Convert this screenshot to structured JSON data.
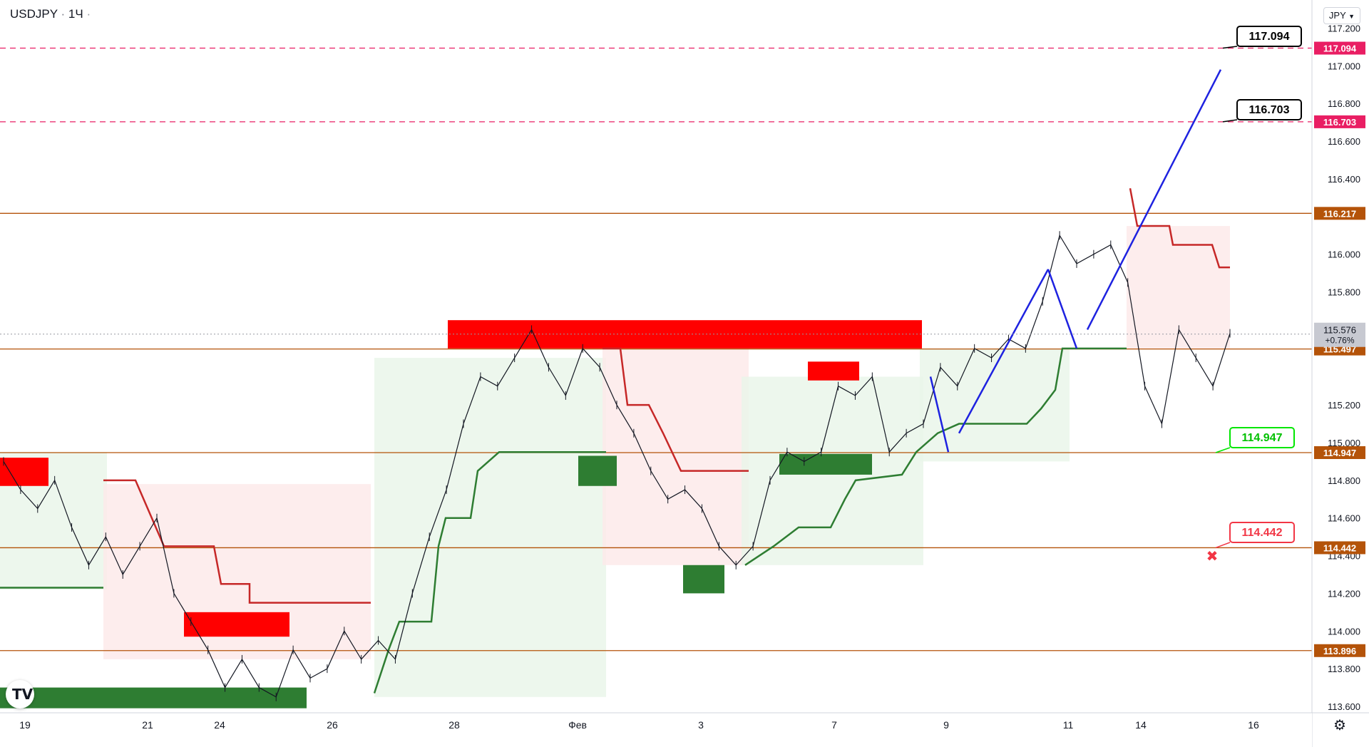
{
  "header": {
    "symbol": "USDJPY",
    "separator": "·",
    "interval": "1Ч"
  },
  "currency_button": {
    "label": "JPY",
    "icon": "chevron-down-icon"
  },
  "settings": {
    "icon": "gear-icon"
  },
  "logo": {
    "text": "TV"
  },
  "chart_data": {
    "type": "line",
    "price_axis": {
      "ticks": [
        "117.200",
        "117.000",
        "116.800",
        "116.600",
        "116.400",
        "116.000",
        "115.800",
        "115.200",
        "115.000",
        "114.800",
        "114.600",
        "114.400",
        "114.200",
        "114.000",
        "113.800",
        "113.600"
      ],
      "range": [
        113.56,
        117.28
      ]
    },
    "time_axis": {
      "ticks": [
        "19",
        "21",
        "24",
        "26",
        "28",
        "Фев",
        "3",
        "7",
        "9",
        "11",
        "14",
        "16"
      ]
    },
    "levels": [
      {
        "price": 117.094,
        "style": "dashed",
        "color": "#e91e63",
        "label": "117.094"
      },
      {
        "price": 116.703,
        "style": "dashed",
        "color": "#e91e63",
        "label": "116.703"
      },
      {
        "price": 116.217,
        "style": "solid",
        "color": "#b45309",
        "label": "116.217"
      },
      {
        "price": 115.497,
        "style": "solid",
        "color": "#b45309",
        "label": "115.497"
      },
      {
        "price": 114.947,
        "style": "solid",
        "color": "#b45309",
        "label": "114.947"
      },
      {
        "price": 114.442,
        "style": "solid",
        "color": "#b45309",
        "label": "114.442"
      },
      {
        "price": 113.896,
        "style": "solid",
        "color": "#b45309",
        "label": "113.896"
      }
    ],
    "current_price": {
      "value": "115.576",
      "change": "+0.76%"
    },
    "callouts": [
      {
        "text": "117.094",
        "color": "#000000"
      },
      {
        "text": "116.703",
        "color": "#000000"
      },
      {
        "text": "114.947",
        "color": "#00e600"
      },
      {
        "text": "114.442",
        "color": "#f23645"
      }
    ],
    "price_series": [
      [
        "19",
        114.9
      ],
      [
        "19",
        114.75
      ],
      [
        "19",
        114.65
      ],
      [
        "19",
        114.8
      ],
      [
        "19",
        114.55
      ],
      [
        "20",
        114.35
      ],
      [
        "20",
        114.5
      ],
      [
        "20",
        114.3
      ],
      [
        "21",
        114.45
      ],
      [
        "21",
        114.6
      ],
      [
        "21",
        114.2
      ],
      [
        "21",
        114.05
      ],
      [
        "21",
        113.9
      ],
      [
        "21",
        113.7
      ],
      [
        "24",
        113.85
      ],
      [
        "24",
        113.7
      ],
      [
        "24",
        113.65
      ],
      [
        "24",
        113.9
      ],
      [
        "24",
        113.75
      ],
      [
        "25",
        113.8
      ],
      [
        "25",
        114.0
      ],
      [
        "25",
        113.85
      ],
      [
        "26",
        113.95
      ],
      [
        "26",
        113.85
      ],
      [
        "26",
        114.2
      ],
      [
        "26",
        114.5
      ],
      [
        "27",
        114.75
      ],
      [
        "27",
        115.1
      ],
      [
        "28",
        115.35
      ],
      [
        "28",
        115.3
      ],
      [
        "28",
        115.45
      ],
      [
        "28",
        115.6
      ],
      [
        "31",
        115.4
      ],
      [
        "31",
        115.25
      ],
      [
        "31",
        115.5
      ],
      [
        "31",
        115.4
      ],
      [
        "Фев",
        115.2
      ],
      [
        "Фев",
        115.05
      ],
      [
        "Фев",
        114.85
      ],
      [
        "1",
        114.7
      ],
      [
        "2",
        114.75
      ],
      [
        "2",
        114.65
      ],
      [
        "3",
        114.45
      ],
      [
        "3",
        114.35
      ],
      [
        "3",
        114.45
      ],
      [
        "3",
        114.8
      ],
      [
        "4",
        114.95
      ],
      [
        "4",
        114.9
      ],
      [
        "4",
        114.95
      ],
      [
        "7",
        115.3
      ],
      [
        "7",
        115.25
      ],
      [
        "7",
        115.35
      ],
      [
        "7",
        114.95
      ],
      [
        "8",
        115.05
      ],
      [
        "8",
        115.1
      ],
      [
        "8",
        115.4
      ],
      [
        "9",
        115.3
      ],
      [
        "9",
        115.5
      ],
      [
        "9",
        115.45
      ],
      [
        "9",
        115.55
      ],
      [
        "10",
        115.5
      ],
      [
        "10",
        115.75
      ],
      [
        "11",
        116.1
      ],
      [
        "11",
        115.95
      ],
      [
        "11",
        116.0
      ],
      [
        "11",
        116.05
      ],
      [
        "11",
        115.85
      ],
      [
        "14",
        115.3
      ],
      [
        "14",
        115.1
      ],
      [
        "14",
        115.6
      ],
      [
        "14",
        115.45
      ],
      [
        "15",
        115.3
      ],
      [
        "15",
        115.58
      ]
    ]
  }
}
